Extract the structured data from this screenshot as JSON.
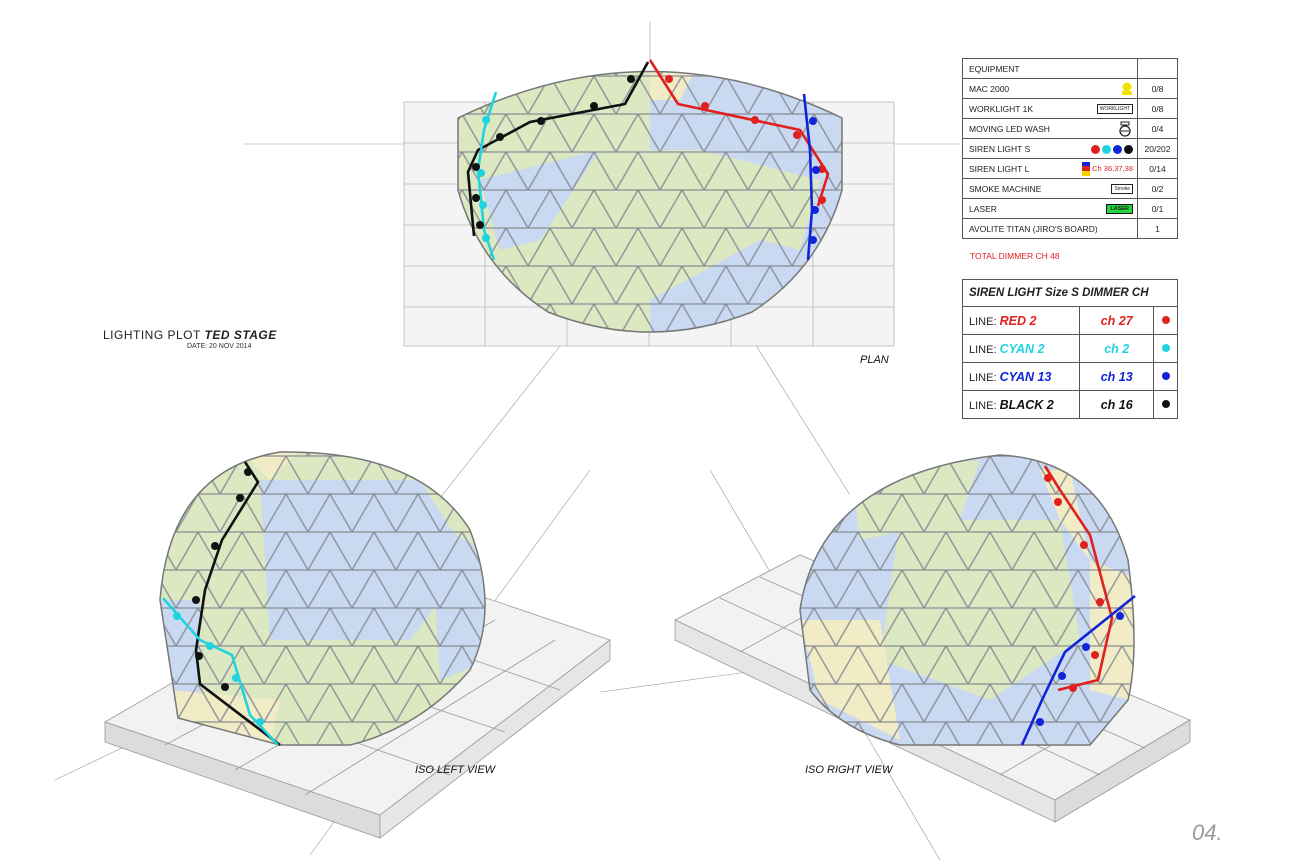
{
  "title": {
    "label": "LIGHTING PLOT",
    "name": "TED STAGE",
    "date": "DATE: 20 NOV 2014"
  },
  "views": {
    "plan": "PLAN",
    "iso_left": "ISO LEFT VIEW",
    "iso_right": "ISO RIGHT VIEW"
  },
  "page_number": "04.",
  "equipment": {
    "header": "EQUIPMENT",
    "rows": [
      {
        "name": "MAC 2000",
        "icon": "mac-2000-icon",
        "count": "0/8"
      },
      {
        "name": "WORKLIGHT 1K",
        "icon": "worklight-icon",
        "icon_text": "WORKLIGHT",
        "count": "0/8"
      },
      {
        "name": "MOVING LED WASH",
        "icon": "led-wash-icon",
        "count": "0/4"
      },
      {
        "name": "SIREN LIGHT S",
        "icon": "siren-dots-icon",
        "count": "20/202"
      },
      {
        "name": "SIREN LIGHT L",
        "icon": "siren-l-icon",
        "icon_text": "Ch 36,37,38",
        "count": "0/14"
      },
      {
        "name": "SMOKE MACHINE",
        "icon": "smoke-icon",
        "icon_text": "Smoke",
        "count": "0/2"
      },
      {
        "name": "LASER",
        "icon": "laser-icon",
        "icon_text": "LASER",
        "count": "0/1"
      },
      {
        "name": "AVOLITE TITAN (JIRO'S BOARD)",
        "icon": "",
        "count": "1"
      }
    ],
    "total": "TOTAL DIMMER CH 48"
  },
  "dimmer": {
    "header": "SIREN LIGHT Size S DIMMER CH",
    "prefix": "LINE:",
    "lines": [
      {
        "name": "RED 2",
        "ch": "ch 27",
        "color": "#e0201e"
      },
      {
        "name": "CYAN 2",
        "ch": "ch 2",
        "color": "#1fd3df"
      },
      {
        "name": "CYAN 13",
        "ch": "ch 13",
        "color": "#1024d8"
      },
      {
        "name": "BLACK 2",
        "ch": "ch 16",
        "color": "#111111"
      }
    ]
  },
  "colors": {
    "red": "#e0201e",
    "cyan": "#1fd3df",
    "blue": "#1024d8",
    "black": "#111111",
    "dome_green": "#dbe8c2",
    "dome_blue": "#c9d9f2",
    "dome_yellow": "#f1ecc6",
    "strut": "#8a8f96"
  }
}
